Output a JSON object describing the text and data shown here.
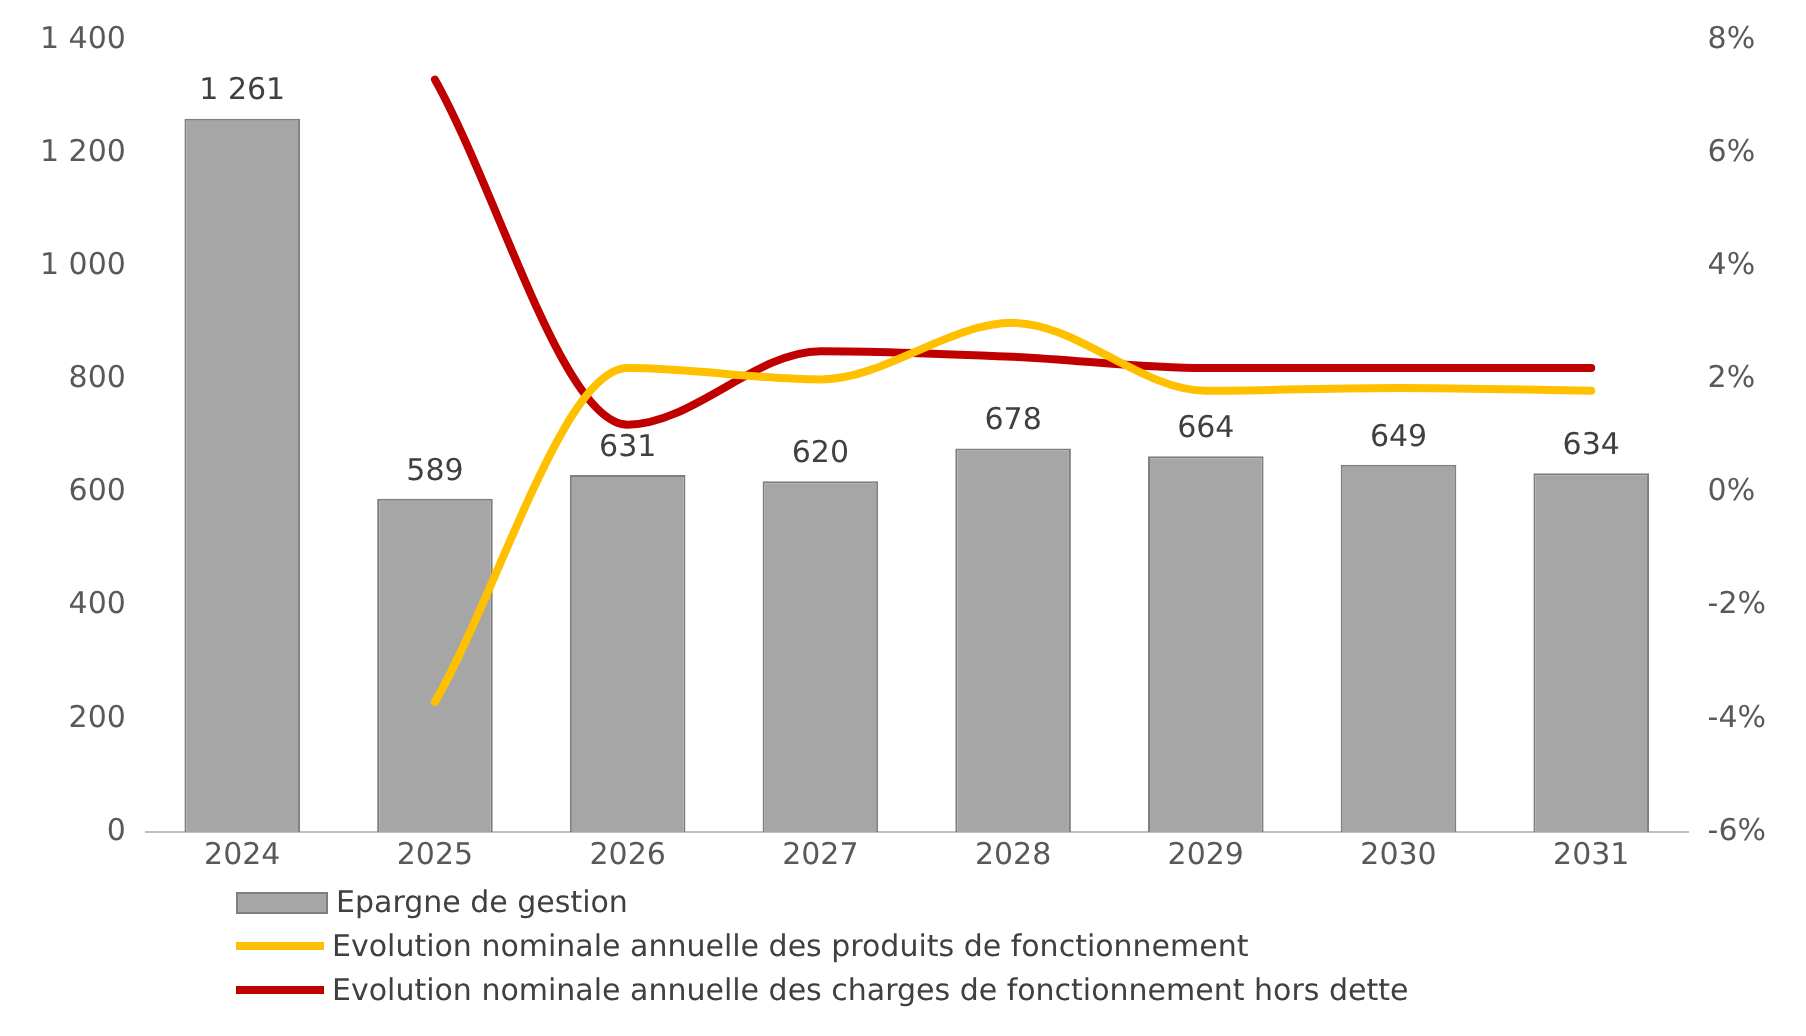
{
  "chart_data": {
    "type": "bar",
    "categories": [
      "2024",
      "2025",
      "2026",
      "2027",
      "2028",
      "2029",
      "2030",
      "2031"
    ],
    "series": [
      {
        "name": "Epargne de gestion",
        "color": "#a6a6a6",
        "values": [
          1261,
          589,
          631,
          620,
          678,
          664,
          649,
          634
        ],
        "value_labels": [
          "1 261",
          "589",
          "631",
          "620",
          "678",
          "664",
          "649",
          "634"
        ]
      },
      {
        "name": "Evolution nominale annuelle des produits de fonctionnement",
        "type": "line",
        "axis": "y2",
        "color": "#ffc000",
        "values": [
          null,
          -3.7,
          2.2,
          2.0,
          3.0,
          1.8,
          1.85,
          1.8
        ]
      },
      {
        "name": "Evolution nominale annuelle des charges de fonctionnement hors dette",
        "type": "line",
        "axis": "y2",
        "color": "#c00000",
        "values": [
          null,
          7.3,
          1.2,
          2.5,
          2.4,
          2.2,
          2.2,
          2.2
        ]
      }
    ],
    "ylim": [
      0,
      1400
    ],
    "yticks": [
      0,
      200,
      400,
      600,
      800,
      {
        "value": 1000,
        "label": "1 000"
      },
      {
        "value": 1200,
        "label": "1 200"
      },
      {
        "value": 1400,
        "label": "1 400"
      }
    ],
    "y2lim": [
      -6,
      8
    ],
    "y2ticks": [
      {
        "value": -6,
        "label": "-6%"
      },
      {
        "value": -4,
        "label": "-4%"
      },
      {
        "value": -2,
        "label": "-2%"
      },
      {
        "value": 0,
        "label": "0%"
      },
      {
        "value": 2,
        "label": "2%"
      },
      {
        "value": 4,
        "label": "4%"
      },
      {
        "value": 6,
        "label": "6%"
      },
      {
        "value": 8,
        "label": "8%"
      }
    ],
    "grid": false,
    "legend": "bottom",
    "marker": "none",
    "line_style": "solid"
  }
}
